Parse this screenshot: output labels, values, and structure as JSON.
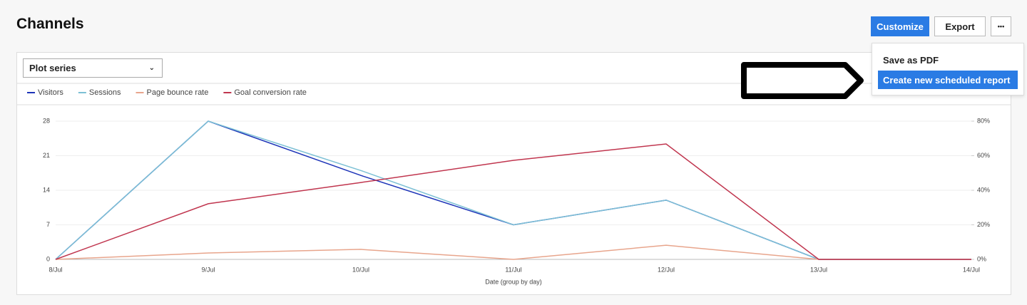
{
  "header": {
    "title": "Channels",
    "buttons": [
      "Customize",
      "Export",
      "•••"
    ]
  },
  "menu": {
    "items": [
      "Save as PDF",
      "Create new scheduled report"
    ]
  },
  "select": {
    "label": "Plot series"
  },
  "chart_data": {
    "type": "line",
    "x_label": "Date (group by day)",
    "categories": [
      "8/Jul",
      "9/Jul",
      "10/Jul",
      "11/Jul",
      "12/Jul",
      "13/Jul",
      "14/Jul"
    ],
    "series": [
      {
        "name": "Visitors",
        "color": "#1d34b8",
        "values": [
          0,
          28,
          17,
          7,
          12,
          0,
          0
        ]
      },
      {
        "name": "Sessions",
        "color": "#7cc0d5",
        "values": [
          0,
          28,
          18,
          7,
          12,
          0,
          0
        ]
      },
      {
        "name": "Page bounce rate",
        "color": "#e8a58c",
        "axis": "y2",
        "values": [
          0,
          3.7,
          5.8,
          0,
          8.2,
          0,
          0
        ]
      },
      {
        "name": "Goal conversion rate",
        "color": "#c0354e",
        "axis": "y2",
        "values": [
          0,
          32.2,
          44.5,
          57.3,
          66.8,
          0,
          0
        ]
      }
    ],
    "ylim": [
      0,
      28
    ],
    "yticks": [
      0,
      7,
      14,
      21,
      28
    ],
    "y2lim": [
      0,
      80
    ],
    "y2ticks": [
      {
        "value": 0,
        "label": "0%"
      },
      {
        "value": 20,
        "label": "20%"
      },
      {
        "value": 40,
        "label": "40%"
      },
      {
        "value": 60,
        "label": "60%"
      },
      {
        "value": 80,
        "label": "80%"
      }
    ],
    "grid": true
  }
}
